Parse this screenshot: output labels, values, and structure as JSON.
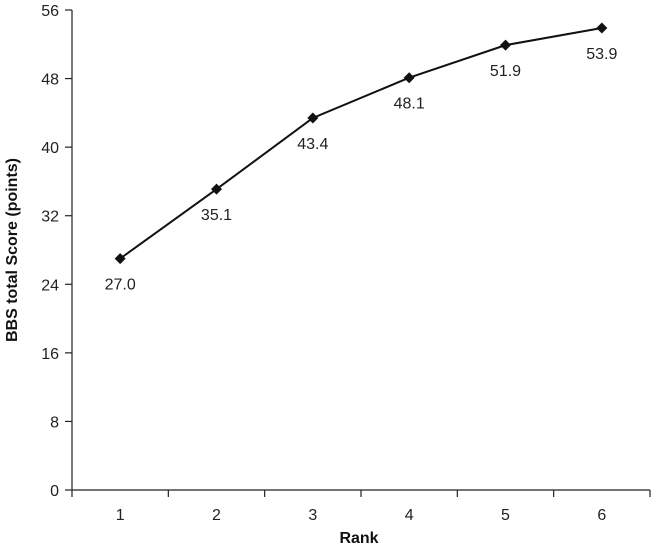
{
  "chart_data": {
    "type": "line",
    "title": "",
    "xlabel": "Rank",
    "ylabel": "BBS total Score (points)",
    "categories": [
      "1",
      "2",
      "3",
      "4",
      "5",
      "6"
    ],
    "ylim": [
      0,
      56
    ],
    "yticks": [
      "0",
      "8",
      "16",
      "24",
      "32",
      "40",
      "48",
      "56"
    ],
    "grid": false,
    "series": [
      {
        "values": [
          27.0,
          35.1,
          43.4,
          48.1,
          51.9,
          53.9
        ],
        "labels": [
          "27.0",
          "35.1",
          "43.4",
          "48.1",
          "51.9",
          "53.9"
        ],
        "marker": "diamond",
        "color": "#111111"
      }
    ]
  }
}
